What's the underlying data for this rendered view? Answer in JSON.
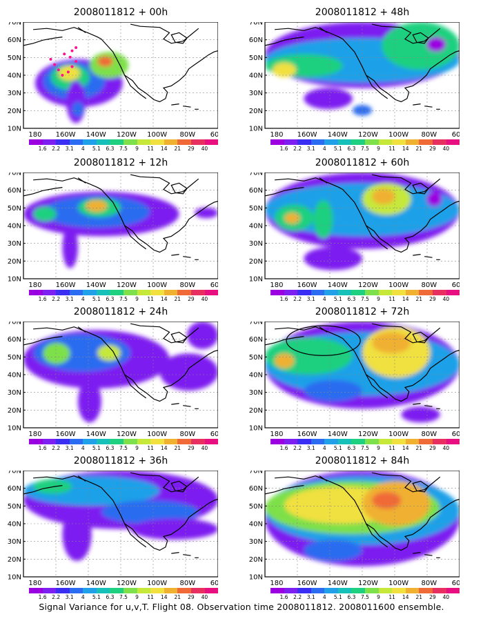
{
  "footer": "Signal Variance for u,v,T. Flight 08. Observation time 2008011812. 2008011600 ensemble.",
  "axes": {
    "lat_labels": [
      "70N",
      "60N",
      "50N",
      "40N",
      "30N",
      "20N",
      "10N"
    ],
    "lon_labels": [
      "180",
      "160W",
      "140W",
      "120W",
      "100W",
      "80W",
      "60W"
    ]
  },
  "colorbar": {
    "labels": [
      "1.6",
      "2.2",
      "3.1",
      "4",
      "5.1",
      "6.3",
      "7.5",
      "9",
      "11",
      "14",
      "21",
      "29",
      "40"
    ],
    "colors": [
      "#9b00e0",
      "#7d1ff0",
      "#3a2ef5",
      "#2c6cf0",
      "#1fa0e8",
      "#17c0b8",
      "#1ed080",
      "#7ee04a",
      "#c6e83a",
      "#f0e040",
      "#f0b030",
      "#f06a38",
      "#e83060",
      "#e81080"
    ]
  },
  "panels": [
    {
      "title": "2008011812 + 00h"
    },
    {
      "title": "2008011812 + 48h"
    },
    {
      "title": "2008011812 + 12h"
    },
    {
      "title": "2008011812 + 60h"
    },
    {
      "title": "2008011812 + 24h"
    },
    {
      "title": "2008011812 + 72h"
    },
    {
      "title": "2008011812 + 36h"
    },
    {
      "title": "2008011812 + 84h"
    }
  ]
}
